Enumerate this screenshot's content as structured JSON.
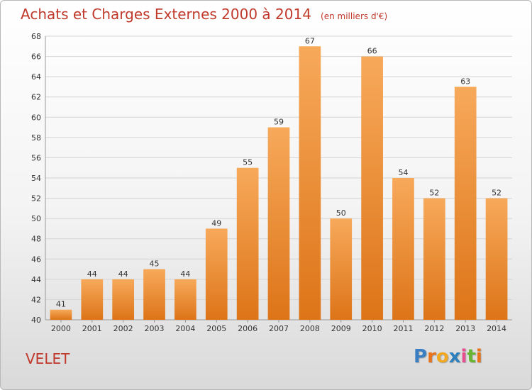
{
  "title": "Achats et Charges Externes 2000 à 2014",
  "unit": "(en milliers d'€)",
  "commune": "VELET",
  "logo": {
    "text": "Proxiti",
    "letters": [
      "P",
      "r",
      "o",
      "x",
      "i",
      "t",
      "i"
    ],
    "colors": [
      "#3a7fc3",
      "#e8731a",
      "#f0a823",
      "#2f7fbd",
      "#e84f8f",
      "#67b533",
      "#e8731a"
    ]
  },
  "colors": {
    "title": "#c0392b",
    "bar_top": "#f7a95a",
    "bar_bottom": "#dd7418",
    "grid": "#d4d4d4",
    "axis_text": "#333333"
  },
  "chart_data": {
    "type": "bar",
    "categories": [
      "2000",
      "2001",
      "2002",
      "2003",
      "2004",
      "2005",
      "2006",
      "2007",
      "2008",
      "2009",
      "2010",
      "2011",
      "2012",
      "2013",
      "2014"
    ],
    "values": [
      41,
      44,
      44,
      45,
      44,
      49,
      55,
      59,
      67,
      50,
      66,
      54,
      52,
      63,
      52
    ],
    "ylim": [
      40,
      68
    ],
    "yticks": [
      40,
      42,
      44,
      46,
      48,
      50,
      52,
      54,
      56,
      58,
      60,
      62,
      64,
      66,
      68
    ],
    "grid": true,
    "data_labels": true
  }
}
